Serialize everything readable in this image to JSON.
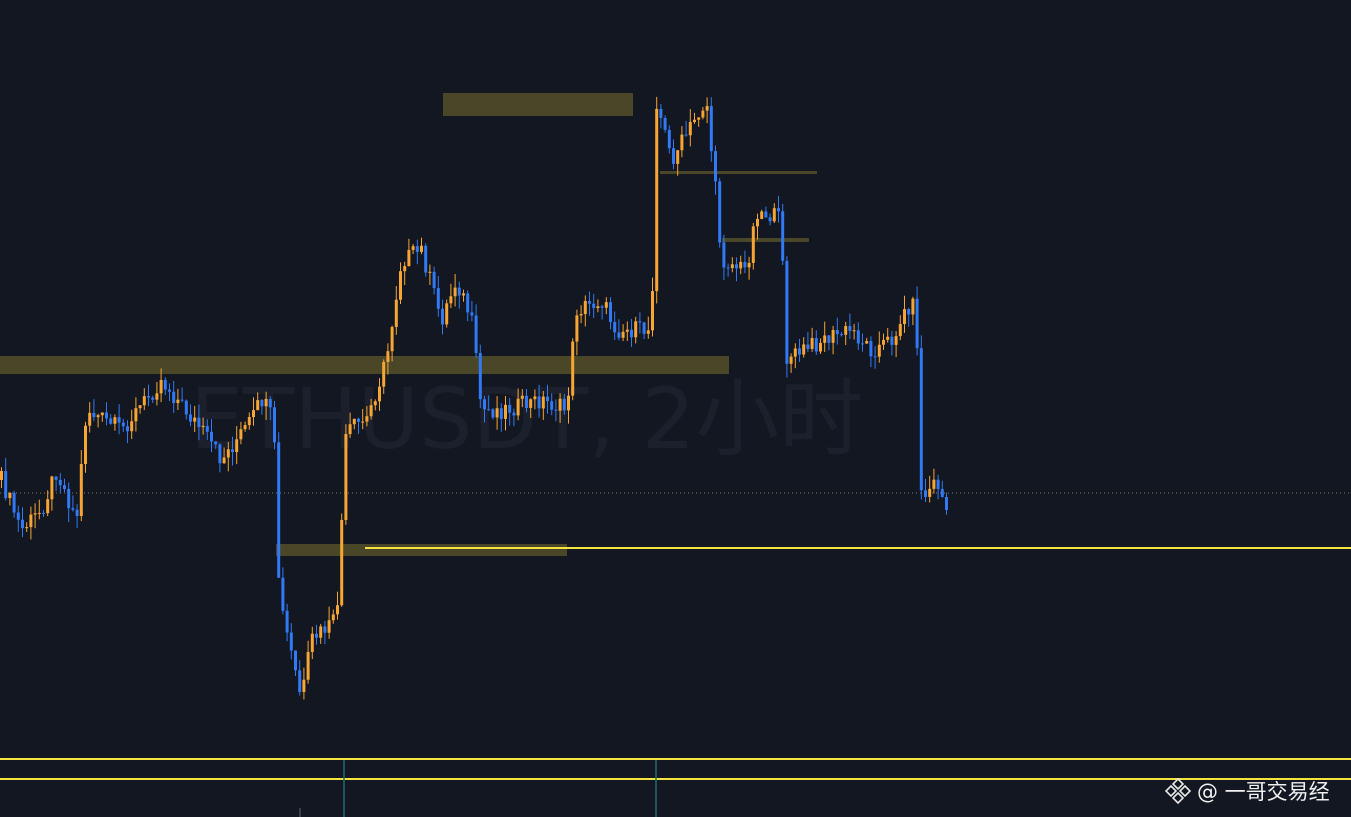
{
  "watermark": "ETHUSDT, 2小时",
  "credit": "@ 一哥交易经"
}
